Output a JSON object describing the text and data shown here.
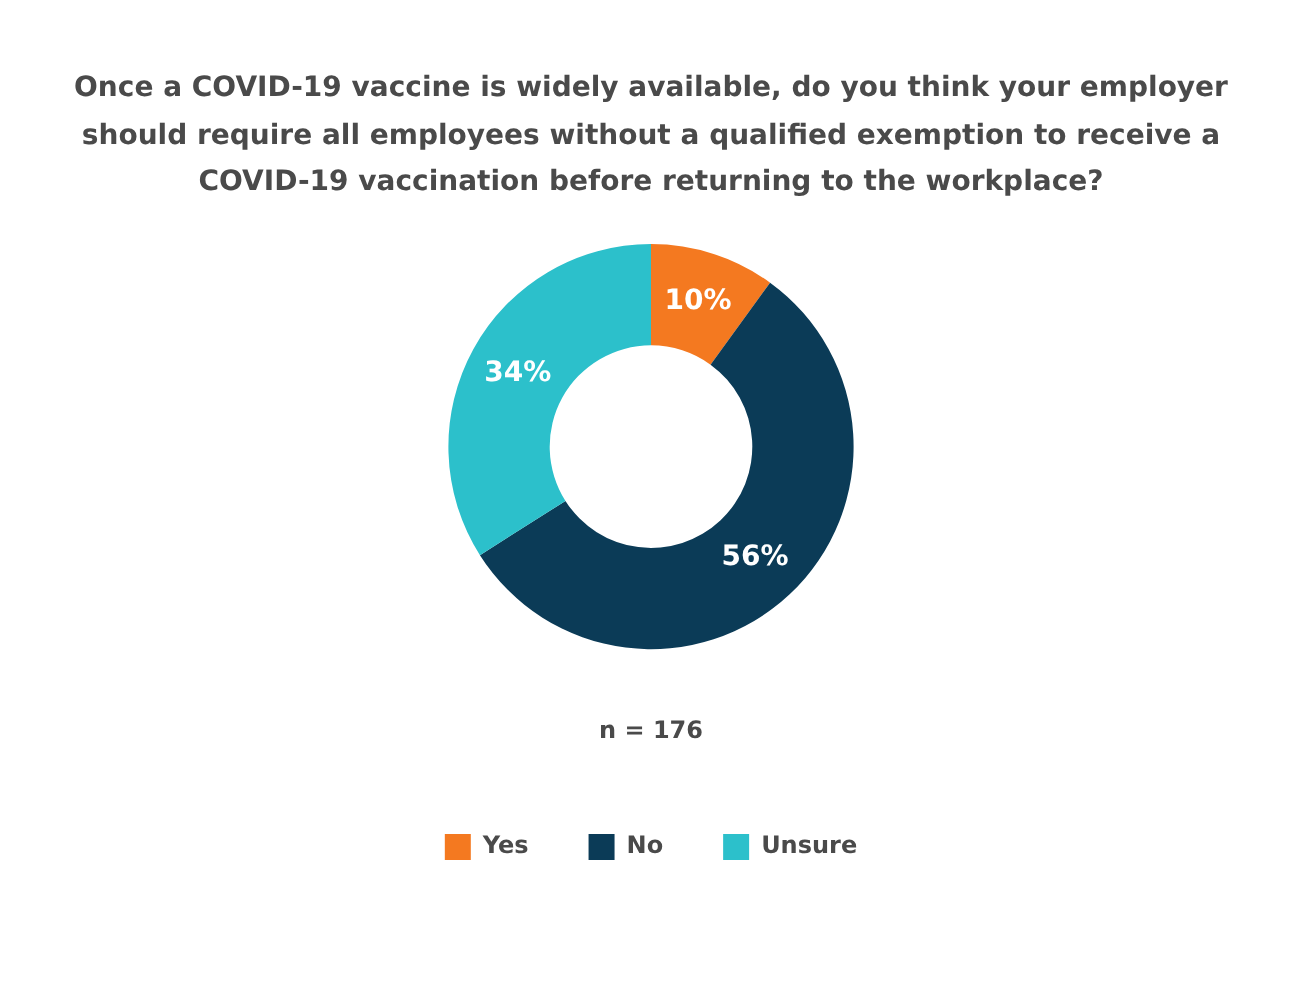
{
  "chart_data": {
    "type": "donut",
    "title": "Once a COVID-19 vaccine is widely available, do you think your employer should require all employees without a qualified exemption to receive a COVID-19 vaccination before returning to the workplace?",
    "categories": [
      "Yes",
      "No",
      "Unsure"
    ],
    "values": [
      10,
      56,
      34
    ],
    "colors": [
      "#f47920",
      "#0b3b57",
      "#2cc0cb"
    ],
    "value_labels": [
      "10%",
      "56%",
      "34%"
    ],
    "annotations": [
      "n = 176"
    ],
    "legend": "bottom"
  }
}
